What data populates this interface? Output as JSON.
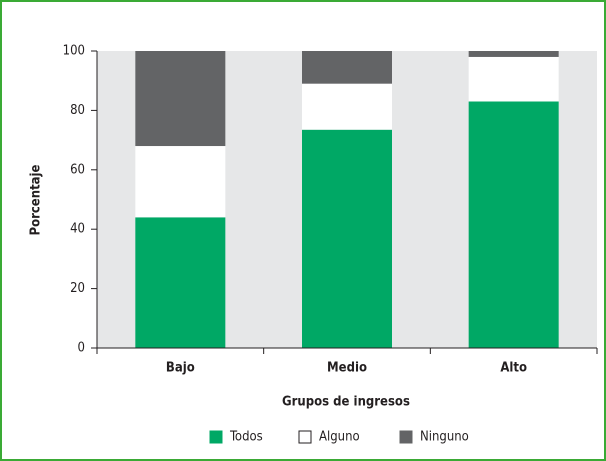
{
  "chart_data": {
    "type": "stacked_bar",
    "categories": [
      "Bajo",
      "Medio",
      "Alto"
    ],
    "series": [
      {
        "name": "Todos",
        "color": "#00a865",
        "values": [
          44,
          73.5,
          83
        ]
      },
      {
        "name": "Alguno",
        "color": "#ffffff",
        "values": [
          24,
          15.5,
          15
        ]
      },
      {
        "name": "Ninguno",
        "color": "#636466",
        "values": [
          32,
          11,
          2
        ]
      }
    ],
    "y_label": "Porcentaje",
    "x_label": "Grupos de ingresos",
    "ylim": [
      0,
      100
    ],
    "yticks": [
      0,
      20,
      40,
      60,
      80,
      100
    ],
    "grid": false,
    "legend": "bottom"
  }
}
